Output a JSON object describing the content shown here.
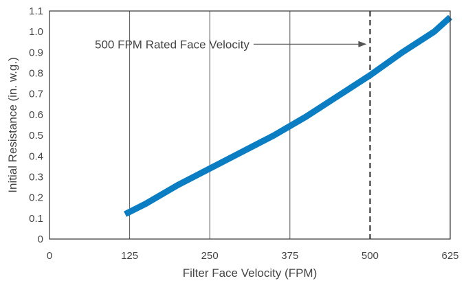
{
  "chart_data": {
    "type": "line",
    "title": "",
    "xlabel": "Filter Face Velocity (FPM)",
    "ylabel": "Initial Resistance (in. w.g.)",
    "xlim": [
      0,
      625
    ],
    "ylim": [
      0,
      1.1
    ],
    "x_ticks": [
      "0",
      "125",
      "250",
      "375",
      "500",
      "625"
    ],
    "y_ticks": [
      "0",
      "0.1",
      "0.2",
      "0.3",
      "0.4",
      "0.5",
      "0.6",
      "0.7",
      "0.8",
      "0.9",
      "1.0",
      "1.1"
    ],
    "grid": {
      "vertical": true,
      "horizontal": false
    },
    "series": [
      {
        "x": [
          118,
          150,
          200,
          250,
          300,
          350,
          400,
          450,
          500,
          550,
          600,
          625
        ],
        "y": [
          0.12,
          0.17,
          0.26,
          0.34,
          0.42,
          0.5,
          0.59,
          0.69,
          0.79,
          0.9,
          1.0,
          1.07
        ],
        "color": "#0a7dc3"
      }
    ],
    "reference_line": {
      "x": 500,
      "style": "dashed",
      "color": "#222222"
    },
    "annotation": {
      "text": "500 FPM Rated Face Velocity",
      "arrow_to_x": 500,
      "y": 0.94
    }
  }
}
